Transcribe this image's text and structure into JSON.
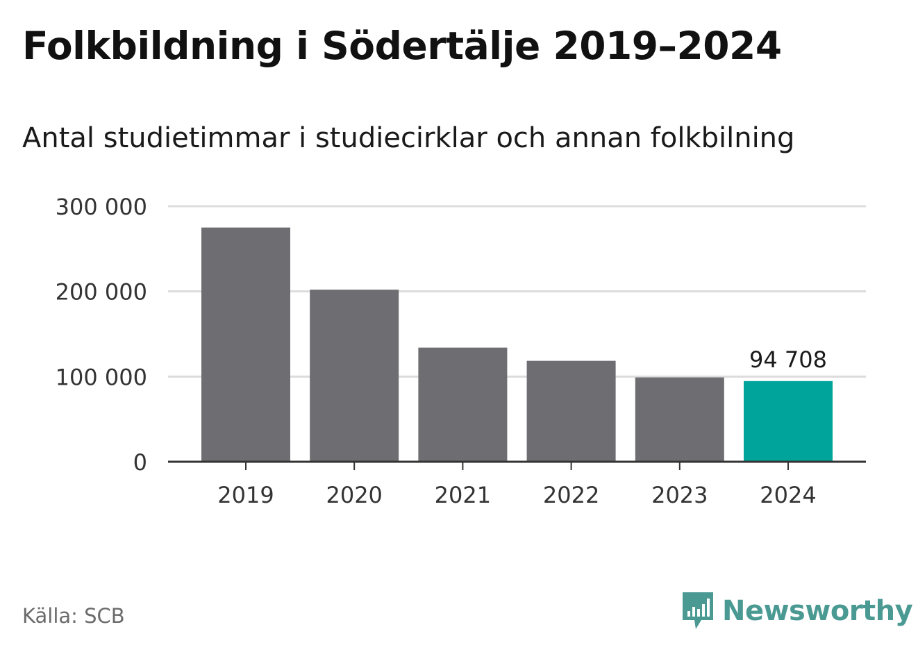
{
  "title": "Folkbildning i Södertälje 2019–2024",
  "subtitle": "Antal studietimmar i studiecirklar och annan folkbilning",
  "source": "Källa: SCB",
  "brand": "Newsworthy",
  "colors": {
    "bar": "#6e6d72",
    "highlight": "#00a49a",
    "grid": "#dcdcdc",
    "axis": "#333333",
    "brand": "#4a9a93"
  },
  "chart_data": {
    "type": "bar",
    "categories": [
      "2019",
      "2020",
      "2021",
      "2022",
      "2023",
      "2024"
    ],
    "values": [
      275000,
      202000,
      134000,
      118500,
      99000,
      94708
    ],
    "highlight_index": 5,
    "data_labels": [
      {
        "index": 5,
        "text": "94 708"
      }
    ],
    "yticks": [
      {
        "value": 0,
        "label": "0"
      },
      {
        "value": 100000,
        "label": "100 000"
      },
      {
        "value": 200000,
        "label": "200 000"
      },
      {
        "value": 300000,
        "label": "300 000"
      }
    ],
    "ylim": [
      0,
      300000
    ],
    "grid": true
  }
}
